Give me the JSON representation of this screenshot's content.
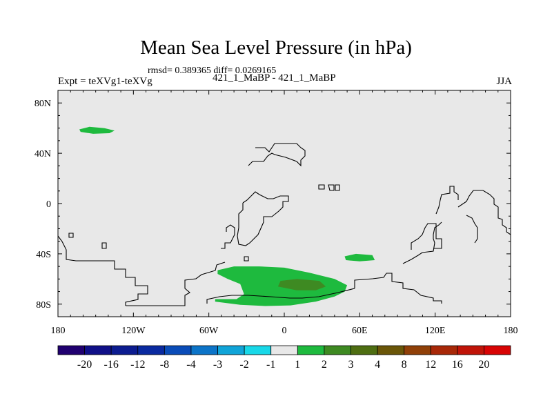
{
  "header": {
    "title": "Mean Sea Level Pressure (in hPa)",
    "stats": "rmsd= 0.389365 diff= 0.0269165",
    "experiment": "Expt = teXVg1-teXVg",
    "subtitle": "421_1_MaBP - 421_1_MaBP",
    "season": "JJA"
  },
  "chart_data": {
    "type": "contour-map",
    "title": "Mean Sea Level Pressure (in hPa)",
    "xlabel": "",
    "ylabel": "",
    "xlim": [
      -180,
      180
    ],
    "ylim": [
      -90,
      90
    ],
    "x_ticks": [
      {
        "value": -180,
        "label": "180"
      },
      {
        "value": -120,
        "label": "120W"
      },
      {
        "value": -60,
        "label": "60W"
      },
      {
        "value": 0,
        "label": "0"
      },
      {
        "value": 60,
        "label": "60E"
      },
      {
        "value": 120,
        "label": "120E"
      },
      {
        "value": 180,
        "label": "180"
      }
    ],
    "y_ticks": [
      {
        "value": 80,
        "label": "80N"
      },
      {
        "value": 40,
        "label": "40N"
      },
      {
        "value": 0,
        "label": "0"
      },
      {
        "value": -40,
        "label": "40S"
      },
      {
        "value": -80,
        "label": "80S"
      }
    ],
    "background_color": "#e8e8e8",
    "colorbar": {
      "labels": [
        "-20",
        "-16",
        "-12",
        "-8",
        "-4",
        "-3",
        "-2",
        "-1",
        "1",
        "2",
        "3",
        "4",
        "8",
        "12",
        "16",
        "20"
      ],
      "colors": [
        "#200070",
        "#101088",
        "#0c1c90",
        "#0a2aa0",
        "#0a4cb8",
        "#0c74c8",
        "#10a4d8",
        "#18d8e8",
        "#e8e8e8",
        "#1eba3e",
        "#3e8a22",
        "#4e6e12",
        "#6a5608",
        "#904008",
        "#a82808",
        "#c01408",
        "#d80404"
      ]
    },
    "regions": [
      {
        "name": "north-pacific-positive",
        "range": "1 to 2",
        "color": "#1eba3e",
        "outline": [
          [
            -163,
            59
          ],
          [
            -155,
            61
          ],
          [
            -143,
            60
          ],
          [
            -135,
            58
          ],
          [
            -139,
            56
          ],
          [
            -152,
            55.5
          ],
          [
            -162,
            57
          ]
        ]
      },
      {
        "name": "south-atlantic-positive",
        "range": "1 to 2",
        "color": "#1eba3e",
        "outline": [
          [
            -53,
            -53
          ],
          [
            -40,
            -50
          ],
          [
            -20,
            -50
          ],
          [
            0,
            -51
          ],
          [
            20,
            -55
          ],
          [
            40,
            -60
          ],
          [
            50,
            -65
          ],
          [
            48,
            -70
          ],
          [
            40,
            -74
          ],
          [
            25,
            -78
          ],
          [
            5,
            -81
          ],
          [
            -15,
            -81.5
          ],
          [
            -35,
            -80.5
          ],
          [
            -55,
            -78
          ],
          [
            -55,
            -76
          ],
          [
            -38,
            -76
          ],
          [
            -32,
            -72
          ],
          [
            -35,
            -64
          ],
          [
            -45,
            -60
          ],
          [
            -53,
            -56
          ]
        ]
      },
      {
        "name": "south-atlantic-core",
        "range": "2 to 3",
        "color": "#3e8a22",
        "outline": [
          [
            -3,
            -61.5
          ],
          [
            10,
            -60
          ],
          [
            28,
            -61.5
          ],
          [
            33,
            -66
          ],
          [
            25,
            -69
          ],
          [
            10,
            -69
          ],
          [
            -5,
            -66
          ]
        ]
      },
      {
        "name": "south-indian-positive",
        "range": "1 to 2",
        "color": "#1eba3e",
        "outline": [
          [
            48,
            -42
          ],
          [
            57,
            -40
          ],
          [
            70,
            -41
          ],
          [
            72,
            -45
          ],
          [
            60,
            -46
          ],
          [
            49,
            -45
          ]
        ]
      }
    ]
  }
}
